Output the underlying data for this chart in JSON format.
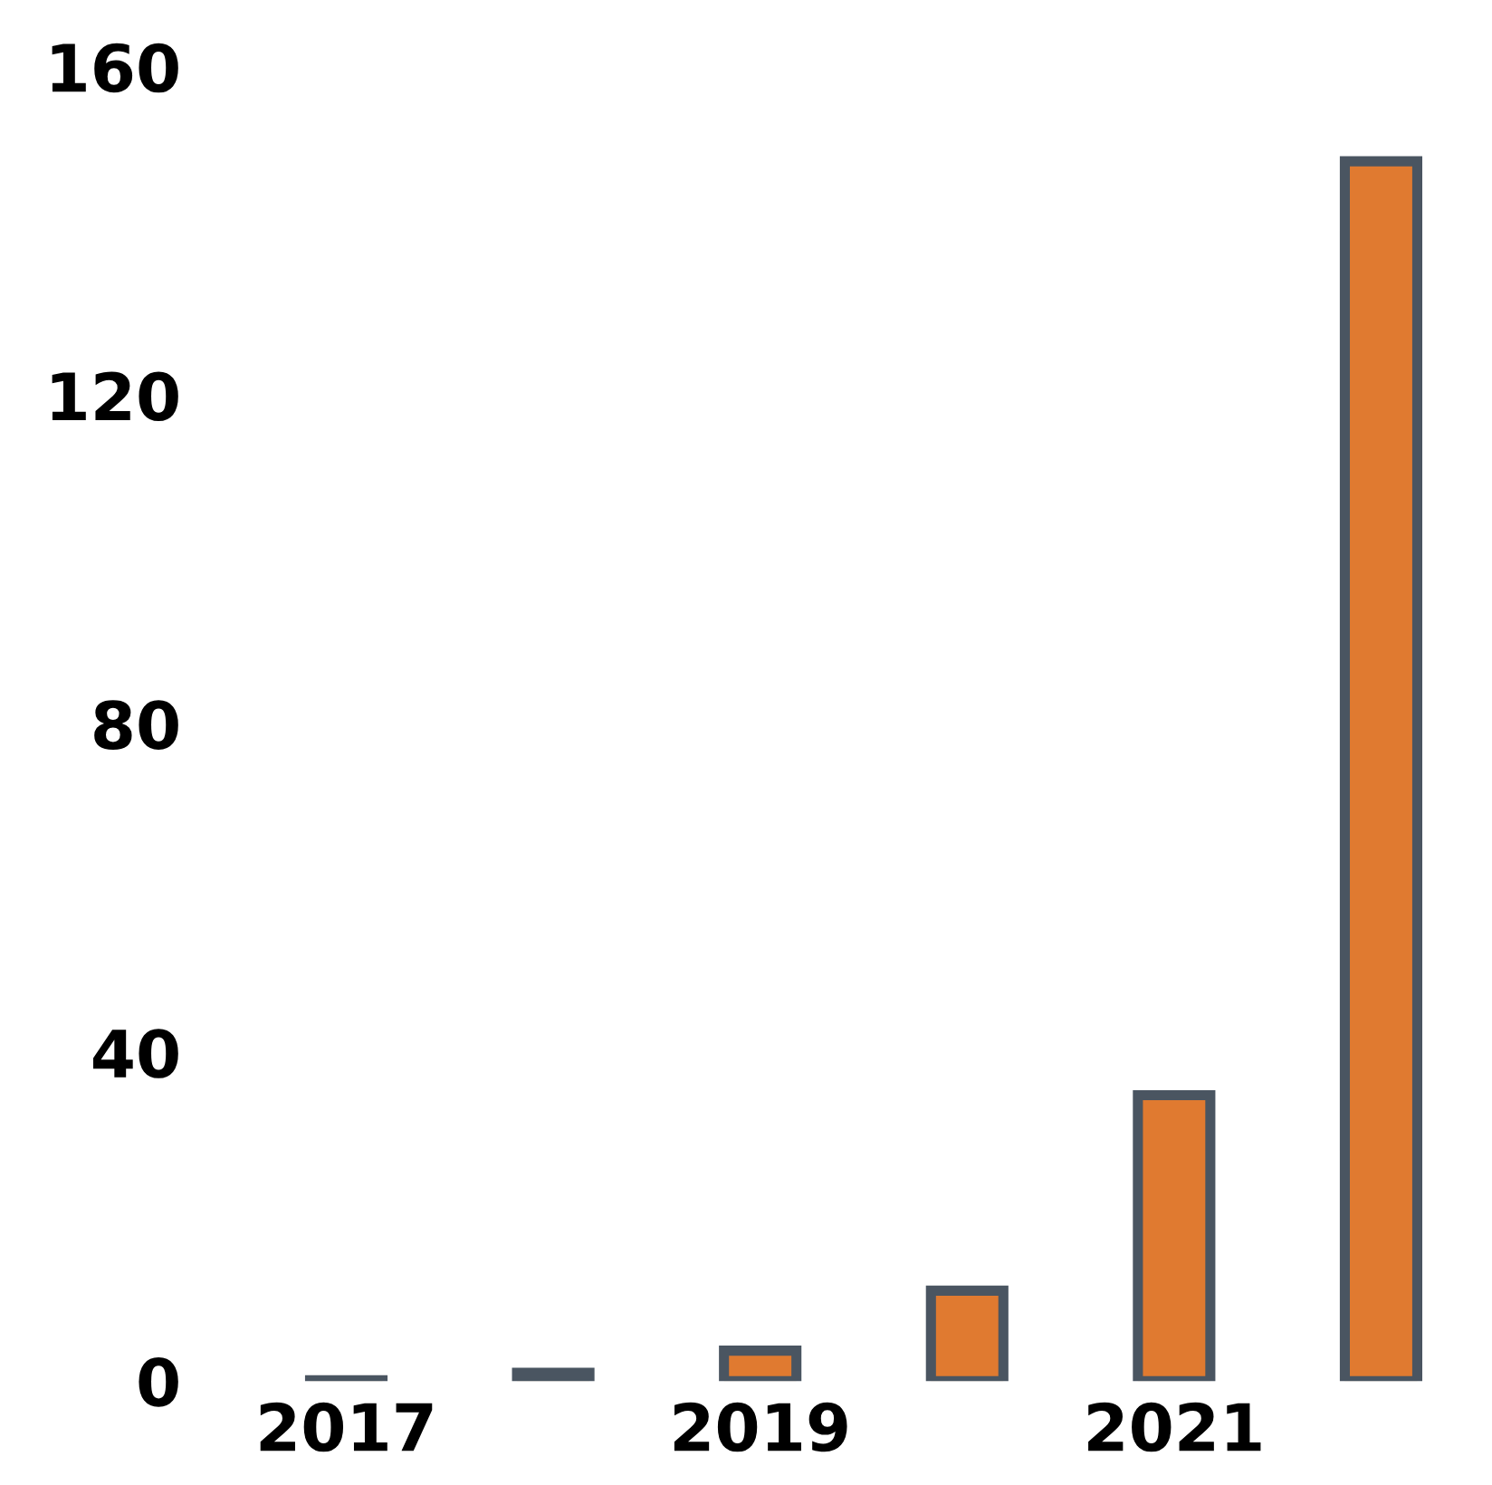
{
  "chart_data": {
    "type": "bar",
    "categories": [
      "2017",
      null,
      "2019",
      null,
      "2021",
      null
    ],
    "values": [
      0.1,
      1,
      3.7,
      11,
      34.8,
      148.5
    ],
    "color": "#e07a30",
    "ylim": [
      0,
      160
    ],
    "yticks": [
      0,
      40,
      80,
      120,
      160
    ],
    "grid": false
  }
}
